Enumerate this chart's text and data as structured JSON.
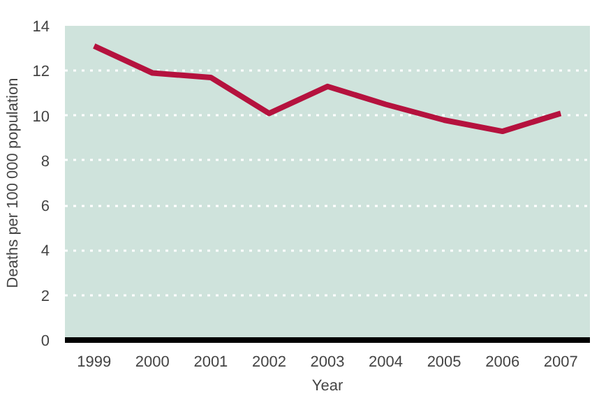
{
  "chart_data": {
    "type": "line",
    "xlabel": "Year",
    "ylabel": "Deaths per 100 000 population",
    "categories": [
      "1999",
      "2000",
      "2001",
      "2002",
      "2003",
      "2004",
      "2005",
      "2006",
      "2007"
    ],
    "series": [
      {
        "color": "#b5123e",
        "values": [
          13.1,
          11.9,
          11.7,
          10.1,
          11.3,
          10.5,
          9.8,
          9.3,
          10.1
        ]
      }
    ],
    "ylim": [
      0,
      14
    ],
    "yticks": [
      0,
      2,
      4,
      6,
      8,
      10,
      12,
      14
    ],
    "grid": "y",
    "line_style": "solid",
    "marker": "none"
  }
}
